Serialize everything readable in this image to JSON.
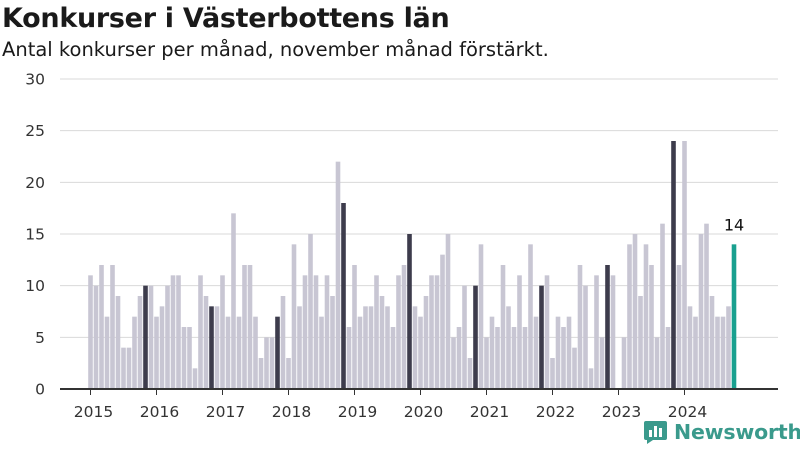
{
  "title": "Konkurser i Västerbottens län",
  "subtitle": "Antal konkurser per månad, november månad förstärkt.",
  "brand": "Newsworthy",
  "colors": {
    "bar": "#c8c6d3",
    "highlight": "#3d3c4c",
    "last": "#19a08f",
    "axis": "#333333",
    "grid": "#d9d9d9"
  },
  "chart_data": {
    "type": "bar",
    "start": "2015-01",
    "highlight_month": "November",
    "ylim": [
      0,
      30
    ],
    "yticks": [
      0,
      5,
      10,
      15,
      20,
      25,
      30
    ],
    "xticks": [
      "2015",
      "2016",
      "2017",
      "2018",
      "2019",
      "2020",
      "2021",
      "2022",
      "2023",
      "2024"
    ],
    "values": [
      11,
      10,
      12,
      7,
      12,
      9,
      4,
      4,
      7,
      9,
      10,
      10,
      7,
      8,
      10,
      11,
      11,
      6,
      6,
      2,
      11,
      9,
      8,
      8,
      11,
      7,
      17,
      7,
      12,
      12,
      7,
      3,
      5,
      5,
      7,
      9,
      3,
      14,
      8,
      11,
      15,
      11,
      7,
      11,
      9,
      22,
      18,
      6,
      12,
      7,
      8,
      8,
      11,
      9,
      8,
      6,
      11,
      12,
      15,
      8,
      7,
      9,
      11,
      11,
      13,
      15,
      5,
      6,
      10,
      3,
      10,
      14,
      5,
      7,
      6,
      12,
      8,
      6,
      11,
      6,
      14,
      7,
      10,
      11,
      3,
      7,
      6,
      7,
      4,
      12,
      10,
      2,
      11,
      5,
      12,
      11,
      0,
      5,
      14,
      15,
      9,
      14,
      12,
      5,
      16,
      6,
      24,
      12,
      24,
      8,
      7,
      15,
      16,
      9,
      7,
      7,
      8,
      14
    ],
    "last_value_label": "14"
  }
}
